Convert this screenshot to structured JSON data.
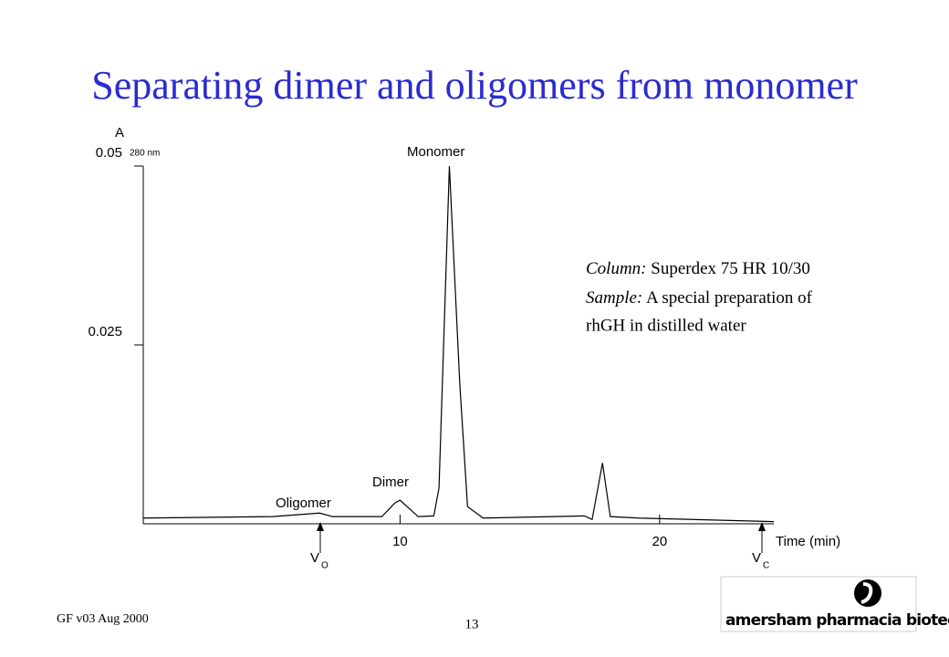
{
  "title": "Separating dimer and oligomers from monomer",
  "chart_data": {
    "type": "line",
    "x": [
      0.1,
      5.1,
      6.9,
      7.4,
      9.3,
      9.8,
      10.0,
      10.3,
      10.7,
      11.3,
      11.5,
      11.9,
      12.3,
      12.6,
      13.2,
      17.1,
      17.4,
      17.8,
      18.1,
      19.2,
      24.4
    ],
    "series": [
      {
        "name": "A280",
        "color": "#000000",
        "values": [
          0.0008,
          0.001,
          0.0015,
          0.001,
          0.001,
          0.0029,
          0.0033,
          0.0023,
          0.001,
          0.0011,
          0.005,
          0.05,
          0.0196,
          0.0024,
          0.0008,
          0.0011,
          0.0006,
          0.0085,
          0.001,
          0.0008,
          0.0003
        ]
      }
    ],
    "xlim": [
      0,
      24.4
    ],
    "ylim": [
      0,
      0.05
    ],
    "xticks": [
      10,
      20
    ],
    "yticks": [
      0.025,
      0.05
    ],
    "xlabel": "Time (min)",
    "ylabel": "A",
    "ylabel_sub": "280  nm",
    "annotations": [
      "Monomer",
      "Dimer",
      "Oligomer"
    ],
    "markers": [
      {
        "label": "V",
        "sub": "O"
      },
      {
        "label": "V",
        "sub": "C"
      }
    ]
  },
  "note": {
    "line1": {
      "label": "Column:",
      "text": "Superdex 75 HR 10/30"
    },
    "line2": {
      "label": "Sample:",
      "text": "A special preparation of"
    },
    "line3": "rhGH in distilled water"
  },
  "footer": {
    "left": "GF v03 Aug 2000",
    "page": "13",
    "logo": "amersham pharmacia biotech"
  }
}
